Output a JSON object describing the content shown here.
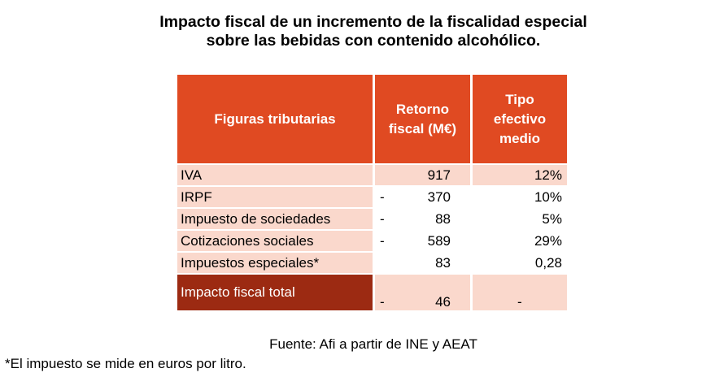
{
  "title": {
    "line1": "Impacto fiscal de un incremento de la fiscalidad especial",
    "line2": "sobre las bebidas con contenido alcohólico."
  },
  "table": {
    "headers": {
      "figuras": "Figuras tributarias",
      "retorno_l1": "Retorno",
      "retorno_l2": "fiscal (M€)",
      "tipo_l1": "Tipo",
      "tipo_l2": "efectivo",
      "tipo_l3": "medio"
    },
    "rows": [
      {
        "name": "IVA",
        "dash": "",
        "retorno": "917",
        "tipo": "12%"
      },
      {
        "name": "IRPF",
        "dash": "-",
        "retorno": "370",
        "tipo": "10%"
      },
      {
        "name": "Impuesto de sociedades",
        "dash": "-",
        "retorno": "88",
        "tipo": "5%"
      },
      {
        "name": "Cotizaciones sociales",
        "dash": "-",
        "retorno": "589",
        "tipo": "29%"
      },
      {
        "name": "Impuestos especiales*",
        "dash": "",
        "retorno": "83",
        "tipo": "0,28"
      }
    ],
    "total": {
      "name": "Impacto fiscal total",
      "dash": "-",
      "retorno": "46",
      "tipo": "-"
    }
  },
  "source": "Fuente: Afi a partir de INE y AEAT",
  "note": "*El impuesto se mide en euros por litro.",
  "colors": {
    "header_bg": "#e04a22",
    "total_bg": "#9c2a12",
    "light_fill": "#fad8cc"
  }
}
